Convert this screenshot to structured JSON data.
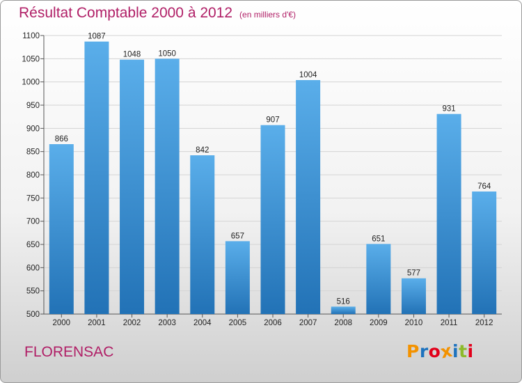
{
  "header": {
    "title": "Résultat Comptable 2000 à 2012",
    "subtitle": "(en milliers d'€)"
  },
  "footer": {
    "commune": "FLORENSAC",
    "logo": "Proxiti"
  },
  "colors": {
    "title": "#b01e66",
    "bar_top": "#5aaeea",
    "bar_bottom": "#2272b6",
    "logo_letters": [
      "#f39200",
      "#1e73be",
      "#e2001a",
      "#f39200",
      "#1e73be",
      "#8dba2c",
      "#e2001a"
    ]
  },
  "chart_data": {
    "type": "bar",
    "title": "Résultat Comptable 2000 à 2012",
    "subtitle": "(en milliers d'€)",
    "categories": [
      "2000",
      "2001",
      "2002",
      "2003",
      "2004",
      "2005",
      "2006",
      "2007",
      "2008",
      "2009",
      "2010",
      "2011",
      "2012"
    ],
    "values": [
      866,
      1087,
      1048,
      1050,
      842,
      657,
      907,
      1004,
      516,
      651,
      577,
      931,
      764
    ],
    "ylim": [
      500,
      1100
    ],
    "yticks": [
      500,
      550,
      600,
      650,
      700,
      750,
      800,
      850,
      900,
      950,
      1000,
      1050,
      1100
    ],
    "grid": true,
    "data_labels": true
  }
}
